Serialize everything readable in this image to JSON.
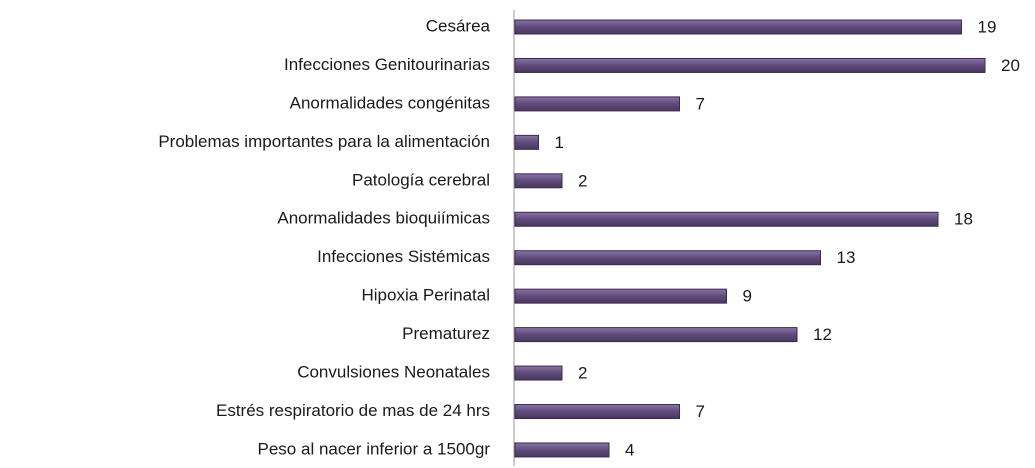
{
  "chart_data": {
    "type": "bar",
    "orientation": "horizontal",
    "categories": [
      "Cesárea",
      "Infecciones Genitourinarias",
      "Anormalidades congénitas",
      "Problemas importantes para la alimentación",
      "Patología cerebral",
      "Anormalidades bioquiímicas",
      "Infecciones Sistémicas",
      "Hipoxia Perinatal",
      "Prematurez",
      "Convulsiones Neonatales",
      "Estrés respiratorio de mas de 24 hrs",
      "Peso al nacer inferior a 1500gr"
    ],
    "values": [
      19,
      20,
      7,
      1,
      2,
      18,
      13,
      9,
      12,
      2,
      7,
      4
    ],
    "color": "#604a7b"
  }
}
